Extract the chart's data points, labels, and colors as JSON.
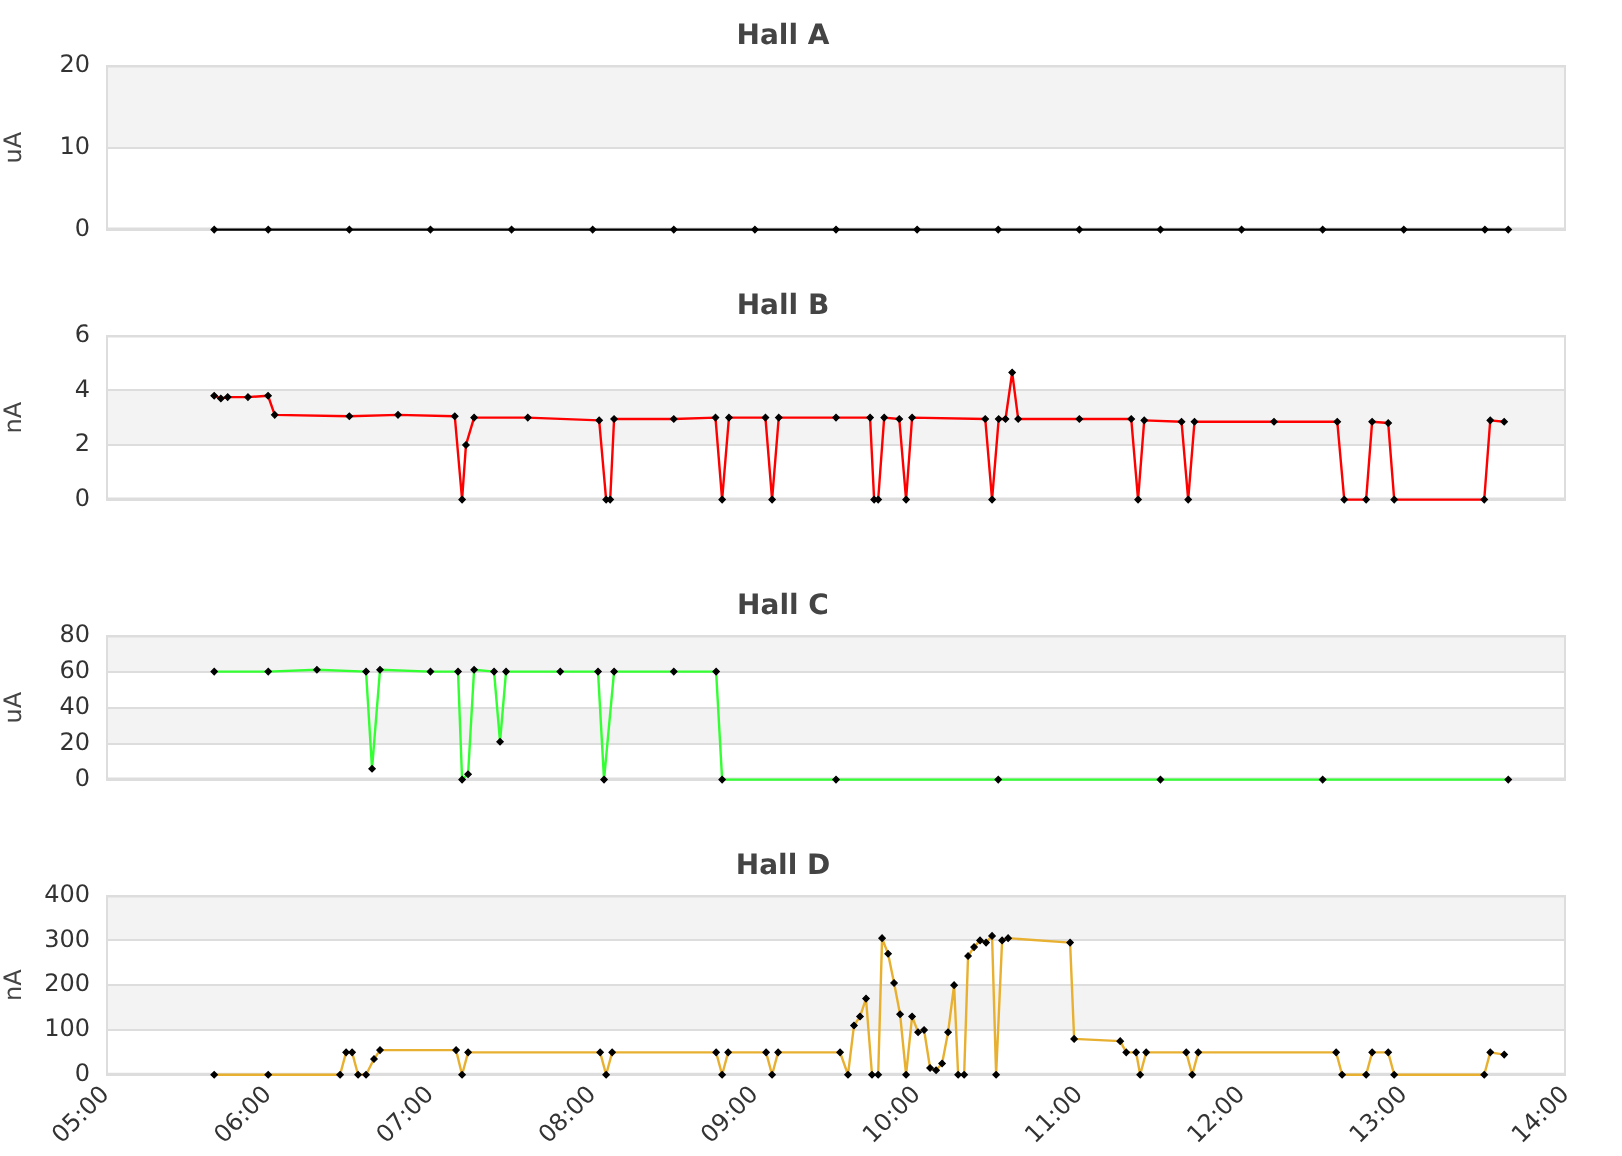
{
  "chart_data": [
    {
      "type": "line",
      "title": "Hall A",
      "ylabel": "uA",
      "ylim": [
        0,
        20
      ],
      "yticks": [
        0,
        10,
        20
      ],
      "bands": [
        {
          "axis": "y",
          "from": 10,
          "to": 20,
          "color": "#f3f3f3"
        }
      ],
      "xlim": [
        5,
        14
      ],
      "tick_labels": "y",
      "grid": "y",
      "legend": false,
      "marker": "diamond",
      "series": [
        {
          "color": "#000000",
          "x": [
            5.667,
            6,
            6.5,
            7,
            7.5,
            8,
            8.5,
            9,
            9.5,
            10,
            10.5,
            11,
            11.5,
            12,
            12.5,
            13,
            13.5,
            13.644
          ],
          "values": [
            0,
            0,
            0,
            0,
            0,
            0,
            0,
            0,
            0,
            0,
            0,
            0,
            0,
            0,
            0,
            0,
            0,
            0
          ]
        }
      ]
    },
    {
      "type": "line",
      "title": "Hall B",
      "ylabel": "nA",
      "ylim": [
        0,
        6
      ],
      "yticks": [
        0,
        2,
        4,
        6
      ],
      "bands": [
        {
          "axis": "y",
          "from": 2,
          "to": 4,
          "color": "#f3f3f3"
        }
      ],
      "xlim": [
        5,
        14
      ],
      "tick_labels": "y",
      "grid": "y",
      "legend": false,
      "marker": "diamond",
      "series": [
        {
          "color": "#ff0000",
          "x": [
            5.667,
            5.708,
            5.75,
            5.875,
            5.999,
            6.04,
            6.5,
            6.8,
            7.15,
            7.195,
            7.219,
            7.269,
            7.6,
            8.04,
            8.083,
            8.108,
            8.132,
            8.5,
            8.757,
            8.798,
            8.84,
            9.065,
            9.106,
            9.147,
            9.5,
            9.71,
            9.735,
            9.76,
            9.797,
            9.89,
            9.932,
            9.969,
            10.42,
            10.462,
            10.503,
            10.545,
            10.586,
            10.623,
            11.0,
            11.32,
            11.362,
            11.4,
            11.63,
            11.671,
            11.71,
            12.2,
            12.59,
            12.633,
            12.768,
            12.805,
            12.904,
            12.941,
            13.496,
            13.533,
            13.619
          ],
          "values": [
            3.8,
            3.7,
            3.75,
            3.75,
            3.8,
            3.1,
            3.05,
            3.1,
            3.05,
            0,
            2.0,
            3.0,
            3.0,
            2.9,
            0,
            0,
            2.95,
            2.95,
            3.0,
            0,
            3.0,
            3.0,
            0,
            3.0,
            3.0,
            3.0,
            0,
            0,
            3.0,
            2.95,
            0,
            3.0,
            2.95,
            0,
            2.95,
            2.95,
            4.65,
            2.95,
            2.95,
            2.95,
            0,
            2.9,
            2.85,
            0,
            2.85,
            2.85,
            2.85,
            0,
            0,
            2.85,
            2.8,
            0,
            0,
            2.9,
            2.85
          ]
        }
      ]
    },
    {
      "type": "line",
      "title": "Hall C",
      "ylabel": "uA",
      "ylim": [
        0,
        80
      ],
      "yticks": [
        0,
        20,
        40,
        60,
        80
      ],
      "bands": [
        {
          "axis": "y",
          "from": 20,
          "to": 40,
          "color": "#f3f3f3"
        },
        {
          "axis": "y",
          "from": 60,
          "to": 80,
          "color": "#f3f3f3"
        }
      ],
      "xlim": [
        5,
        14
      ],
      "tick_labels": "y",
      "grid": "y",
      "legend": false,
      "marker": "diamond",
      "series": [
        {
          "color": "#33ff33",
          "x": [
            5.667,
            6.0,
            6.3,
            6.603,
            6.64,
            6.689,
            7.0,
            7.17,
            7.195,
            7.232,
            7.269,
            7.392,
            7.429,
            7.466,
            7.8,
            8.033,
            8.07,
            8.132,
            8.5,
            8.761,
            8.798,
            9.5,
            10.5,
            11.5,
            12.5,
            13.644
          ],
          "values": [
            60,
            60,
            61,
            60,
            6,
            61,
            60,
            60,
            0,
            3,
            61,
            60,
            21,
            60,
            60,
            60,
            0,
            60,
            60,
            60,
            0,
            0,
            0,
            0,
            0,
            0
          ]
        }
      ]
    },
    {
      "type": "line",
      "title": "Hall D",
      "ylabel": "nA",
      "ylim": [
        0,
        400
      ],
      "yticks": [
        0,
        100,
        200,
        300,
        400
      ],
      "bands": [
        {
          "axis": "y",
          "from": 100,
          "to": 200,
          "color": "#f3f3f3"
        },
        {
          "axis": "y",
          "from": 300,
          "to": 400,
          "color": "#f3f3f3"
        }
      ],
      "xlim": [
        5,
        14
      ],
      "xticks": [
        {
          "value": 5,
          "label": "05:00"
        },
        {
          "value": 6,
          "label": "06:00"
        },
        {
          "value": 7,
          "label": "07:00"
        },
        {
          "value": 8,
          "label": "08:00"
        },
        {
          "value": 9,
          "label": "09:00"
        },
        {
          "value": 10,
          "label": "10:00"
        },
        {
          "value": 11,
          "label": "11:00"
        },
        {
          "value": 12,
          "label": "12:00"
        },
        {
          "value": 13,
          "label": "13:00"
        },
        {
          "value": 14,
          "label": "14:00"
        }
      ],
      "grid": "y",
      "legend": false,
      "marker": "diamond",
      "series": [
        {
          "color": "#e8b030",
          "x": [
            5.667,
            6.0,
            6.443,
            6.48,
            6.517,
            6.554,
            6.603,
            6.652,
            6.689,
            7.158,
            7.195,
            7.232,
            8.046,
            8.083,
            8.12,
            8.761,
            8.798,
            8.835,
            9.069,
            9.106,
            9.143,
            9.525,
            9.574,
            9.611,
            9.648,
            9.685,
            9.722,
            9.76,
            9.784,
            9.821,
            9.858,
            9.895,
            9.932,
            9.969,
            10.006,
            10.043,
            10.08,
            10.117,
            10.154,
            10.191,
            10.228,
            10.253,
            10.29,
            10.314,
            10.351,
            10.388,
            10.425,
            10.462,
            10.487,
            10.524,
            10.561,
            10.943,
            10.968,
            11.252,
            11.289,
            11.35,
            11.375,
            11.412,
            11.659,
            11.696,
            11.733,
            12.583,
            12.62,
            12.768,
            12.805,
            12.904,
            12.941,
            13.496,
            13.533,
            13.619
          ],
          "values": [
            0,
            0,
            0,
            50,
            50,
            0,
            0,
            35,
            55,
            55,
            0,
            50,
            50,
            0,
            50,
            50,
            0,
            50,
            50,
            0,
            50,
            50,
            0,
            110,
            130,
            170,
            0,
            0,
            305,
            270,
            205,
            135,
            0,
            130,
            95,
            100,
            15,
            10,
            25,
            95,
            200,
            0,
            0,
            265,
            285,
            300,
            295,
            310,
            0,
            300,
            305,
            295,
            80,
            75,
            50,
            50,
            0,
            50,
            50,
            0,
            50,
            50,
            0,
            0,
            50,
            50,
            0,
            0,
            50,
            45
          ]
        }
      ]
    }
  ]
}
